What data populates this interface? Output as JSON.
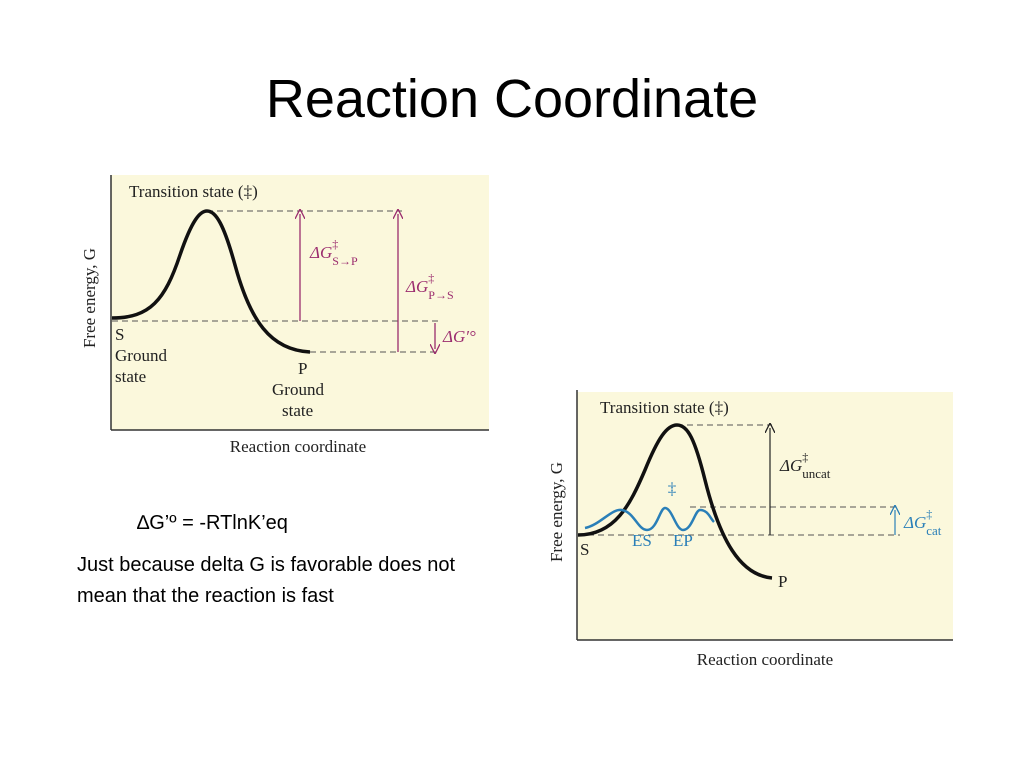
{
  "title": "Reaction Coordinate",
  "diagram_1": {
    "transition_state": "Transition state (‡)",
    "y_axis": "Free energy, G",
    "x_axis": "Reaction coordinate",
    "s_label": "S",
    "s_ground": [
      "Ground",
      "state"
    ],
    "p_label": "P",
    "p_ground": [
      "Ground",
      "state"
    ],
    "dg_s_to_p": {
      "symbol": "ΔG",
      "superscript": "‡",
      "subscript": "S→P"
    },
    "dg_p_to_s": {
      "symbol": "ΔG",
      "superscript": "‡",
      "subscript": "P→S"
    },
    "dg_standard": "ΔG′°"
  },
  "formula": "∆G’º = -RTlnK’eq",
  "note": "Just because delta G is favorable does not mean that the reaction is fast",
  "diagram_2": {
    "transition_state": "Transition state (‡)",
    "y_axis": "Free energy, G",
    "x_axis": "Reaction coordinate",
    "s_label": "S",
    "p_label": "P",
    "es_label": "ES",
    "ep_label": "EP",
    "catalyzed_ts": "‡",
    "dg_uncat": {
      "symbol": "ΔG",
      "superscript": "‡",
      "subscript": "uncat"
    },
    "dg_cat": {
      "symbol": "ΔG",
      "superscript": "‡",
      "subscript": "cat"
    }
  }
}
